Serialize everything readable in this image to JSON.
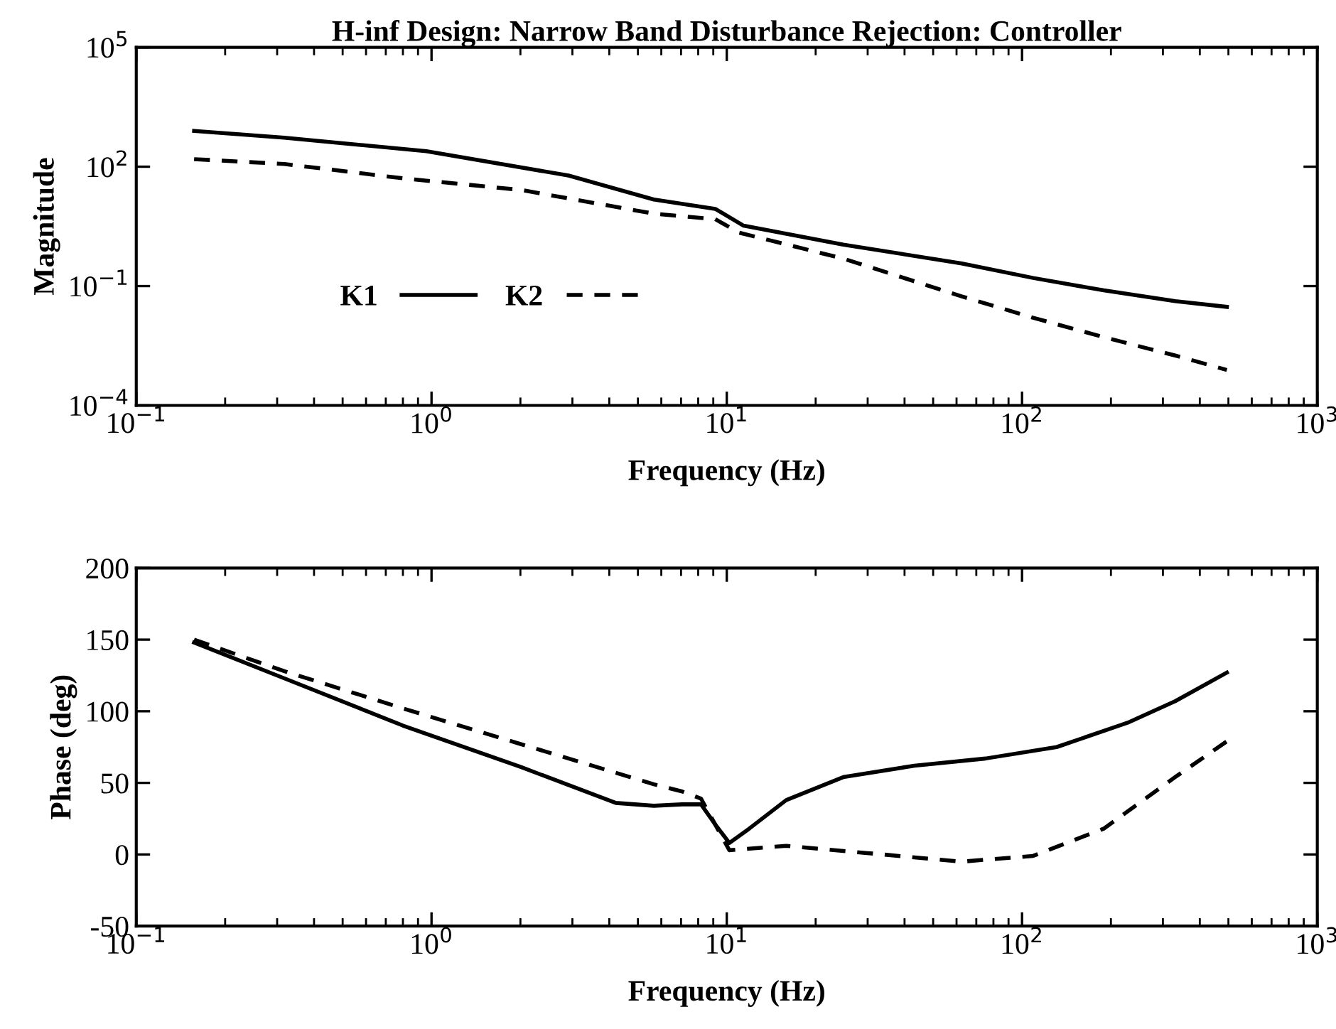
{
  "chart_data": [
    {
      "type": "line",
      "title": "H-inf Design: Narrow Band Disturbance Rejection: Controller",
      "xlabel": "Frequency (Hz)",
      "ylabel": "Magnitude",
      "log": "xy",
      "xlim": [
        0.1,
        1000
      ],
      "ylim": [
        0.0001,
        100000
      ],
      "xticks": [
        {
          "value": 0.1,
          "label": "10$^{−1}$"
        },
        {
          "value": 1,
          "label": "10$^{0}$"
        },
        {
          "value": 10,
          "label": "10$^{1}$"
        },
        {
          "value": 100,
          "label": "10$^{2}$"
        },
        {
          "value": 1000,
          "label": "10$^{3}$"
        }
      ],
      "yticks": [
        {
          "value": 0.0001,
          "label": "10$^{−4}$"
        },
        {
          "value": 0.1,
          "label": "10$^{−1}$"
        },
        {
          "value": 100,
          "label": "10$^{2}$"
        },
        {
          "value": 100000,
          "label": "10$^{5}$"
        }
      ],
      "grid": false,
      "legend": "left",
      "series": [
        {
          "name": "K1",
          "color": "#000000",
          "line_style": "solid",
          "x": [
            0.157,
            0.317,
            0.96,
            2.91,
            5.66,
            9.14,
            11.4,
            24.8,
            62.5,
            109,
            189,
            330,
            494
          ],
          "values": [
            794,
            537,
            245,
            60,
            15,
            8.7,
            3.3,
            1.1,
            0.37,
            0.16,
            0.078,
            0.042,
            0.03
          ]
        },
        {
          "name": "K2",
          "color": "#000000",
          "line_style": "dashed",
          "x": [
            0.157,
            0.317,
            0.8,
            2.01,
            5.66,
            9.14,
            11.0,
            24.8,
            62.5,
            109,
            189,
            330,
            494
          ],
          "values": [
            155,
            117,
            51,
            26,
            6.6,
            4.8,
            2.2,
            0.49,
            0.055,
            0.016,
            0.0052,
            0.0018,
            0.00078
          ]
        }
      ]
    },
    {
      "type": "line",
      "xlabel": "Frequency (Hz)",
      "ylabel": "Phase (deg)",
      "log": "x",
      "xlim": [
        0.1,
        1000
      ],
      "ylim": [
        -50,
        200
      ],
      "xticks": [
        {
          "value": 0.1,
          "label": "10$^{−1}$"
        },
        {
          "value": 1,
          "label": "10$^{0}$"
        },
        {
          "value": 10,
          "label": "10$^{1}$"
        },
        {
          "value": 100,
          "label": "10$^{2}$"
        },
        {
          "value": 1000,
          "label": "10$^{3}$"
        }
      ],
      "yticks": [
        -50,
        0,
        50,
        100,
        150,
        200
      ],
      "grid": false,
      "series": [
        {
          "color": "#000000",
          "line_style": "solid",
          "x": [
            0.157,
            0.317,
            0.8,
            2.01,
            4.21,
            5.66,
            7.06,
            8.18,
            9.14,
            10.2,
            11.9,
            15.9,
            24.8,
            43.2,
            75.2,
            131,
            228,
            330,
            494
          ],
          "values": [
            148,
            123,
            90,
            61,
            36,
            34,
            35,
            35,
            21,
            8,
            18,
            38,
            54,
            62,
            67,
            75,
            92,
            107,
            127
          ]
        },
        {
          "color": "#000000",
          "line_style": "dashed",
          "x": [
            0.157,
            0.317,
            0.8,
            2.01,
            5.66,
            7.06,
            8.18,
            10.2,
            15.9,
            29.9,
            62.5,
            109,
            189,
            330,
            494
          ],
          "values": [
            150,
            128,
            102,
            77,
            49,
            44,
            39,
            3,
            6,
            1,
            -5,
            -1,
            18,
            54,
            79
          ]
        }
      ]
    }
  ]
}
